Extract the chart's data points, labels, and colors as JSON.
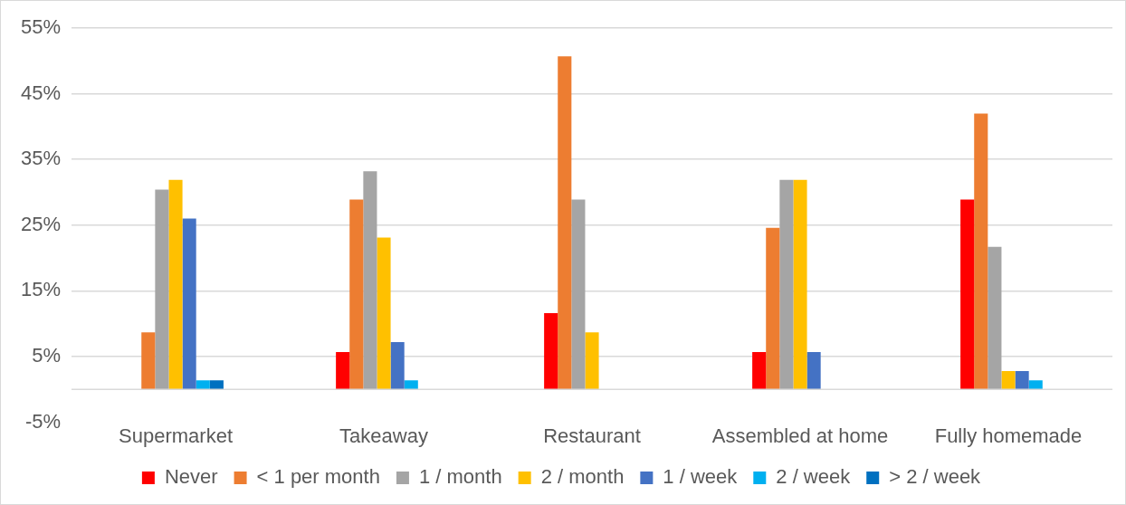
{
  "chart_data": {
    "type": "bar",
    "categories": [
      "Supermarket",
      "Takeaway",
      "Restaurant",
      "Assembled at home",
      "Fully homemade"
    ],
    "series": [
      {
        "name": "Never",
        "color": "#ff0000",
        "values": [
          0,
          5.7,
          11.6,
          5.7,
          28.9
        ]
      },
      {
        "name": "< 1 per month",
        "color": "#ed7d31",
        "values": [
          8.7,
          28.9,
          50.7,
          24.6,
          42.0
        ]
      },
      {
        "name": "1 / month",
        "color": "#a5a5a5",
        "values": [
          30.4,
          33.2,
          28.9,
          31.9,
          21.7
        ]
      },
      {
        "name": "2 / month",
        "color": "#ffc000",
        "values": [
          31.9,
          23.1,
          8.7,
          31.9,
          2.8
        ]
      },
      {
        "name": "1 / week",
        "color": "#4472c4",
        "values": [
          26.0,
          7.2,
          0,
          5.7,
          2.8
        ]
      },
      {
        "name": "2 / week",
        "color": "#00b0f0",
        "values": [
          1.4,
          1.4,
          0,
          0,
          1.4
        ]
      },
      {
        "name": "> 2 / week",
        "color": "#0070c0",
        "values": [
          1.4,
          0,
          0,
          0,
          0
        ]
      }
    ],
    "ylim": [
      -5,
      55
    ],
    "yticks": [
      {
        "value": -5,
        "label": "-5%"
      },
      {
        "value": 5,
        "label": "5%"
      },
      {
        "value": 15,
        "label": "15%"
      },
      {
        "value": 25,
        "label": "25%"
      },
      {
        "value": 35,
        "label": "35%"
      },
      {
        "value": 45,
        "label": "45%"
      },
      {
        "value": 55,
        "label": "55%"
      }
    ],
    "grid": "y",
    "legend": "bottom"
  }
}
